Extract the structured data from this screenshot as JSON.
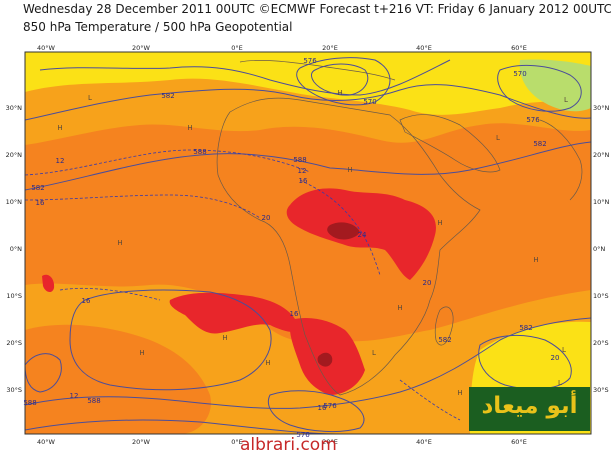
{
  "header": {
    "line1": "Wednesday 28 December 2011 00UTC ©ECMWF Forecast t+216 VT: Friday 6 January 2012 00UTC",
    "line2": "850 hPa Temperature / 500 hPa Geopotential"
  },
  "axes": {
    "top_lon": [
      "40°W",
      "20°W",
      "0°E",
      "20°E",
      "40°E",
      "60°E"
    ],
    "bottom_lon": [
      "40°W",
      "20°W",
      "0°E",
      "20°E",
      "40°E",
      "60°E"
    ],
    "left_lat": [
      "30°N",
      "20°N",
      "10°N",
      "0°N",
      "10°S",
      "20°S",
      "30°S"
    ],
    "right_lat": [
      "30°N",
      "20°N",
      "10°N",
      "0°N",
      "10°S",
      "20°S",
      "30°S"
    ]
  },
  "contour_labels": [
    "582",
    "582",
    "588",
    "588",
    "570",
    "576",
    "582",
    "588",
    "576",
    "576",
    "582",
    "588",
    "582",
    "576",
    "570"
  ],
  "temp_labels": [
    "12",
    "16",
    "12",
    "16",
    "20",
    "24",
    "20",
    "16",
    "16",
    "12",
    "16",
    "20",
    "20",
    "16",
    "12",
    "8",
    "4",
    "0",
    "-4",
    "8",
    "12",
    "16",
    "20",
    "16",
    "12"
  ],
  "pressure_markers": [
    "H",
    "H",
    "H",
    "H",
    "H",
    "H",
    "H",
    "H",
    "H",
    "H",
    "H",
    "H",
    "L",
    "L",
    "L",
    "L",
    "L",
    "L"
  ],
  "colors": {
    "ocean_band": "#f5831f",
    "warm": "#f7a21b",
    "cool_yellow": "#fbe116",
    "pale_green": "#b9dd6c",
    "hot_red": "#e8262b",
    "hottest": "#a31a1f",
    "contour": "#4b4d9a"
  },
  "logo": {
    "text": "أبو ميعاد"
  },
  "watermark": {
    "text": "albrari.com"
  }
}
